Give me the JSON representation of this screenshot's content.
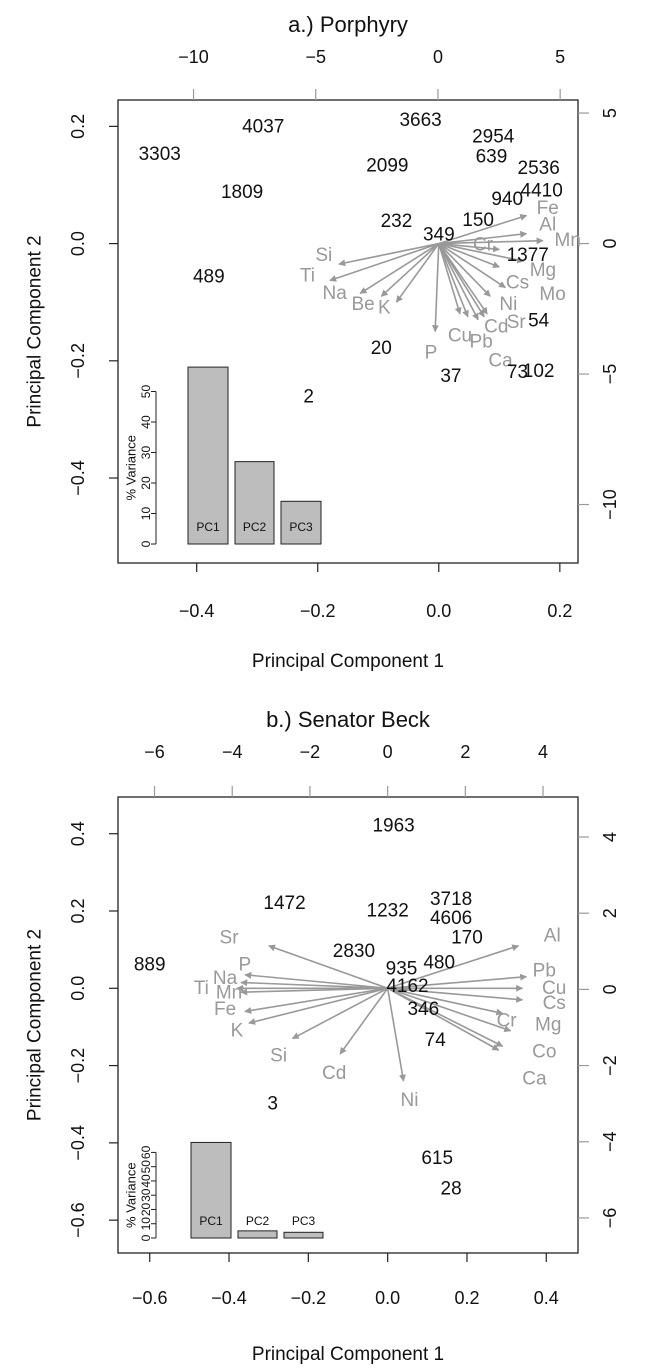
{
  "chart_data": [
    {
      "type": "scatter",
      "title": "a.) Porphyry",
      "xlabel": "Principal Component 1",
      "ylabel": "Principal Component 2",
      "xlim": [
        -0.53,
        0.23
      ],
      "ylim": [
        -0.545,
        0.245
      ],
      "x_ticks": [
        -0.4,
        -0.2,
        0.0,
        0.2
      ],
      "x_tick_labels": [
        "−0.4",
        "−0.2",
        "0.0",
        "0.2"
      ],
      "y_ticks": [
        -0.4,
        -0.2,
        0.0,
        0.2
      ],
      "y_tick_labels": [
        "−0.4",
        "−0.2",
        "0.0",
        "0.2"
      ],
      "top_ticks": [
        -10,
        -5,
        0,
        5
      ],
      "top_tick_labels": [
        "−10",
        "−5",
        "0",
        "5"
      ],
      "top_lim": [
        -13.09,
        5.73
      ],
      "right_ticks": [
        5,
        0,
        -5,
        -10
      ],
      "right_tick_labels": [
        "5",
        "0",
        "−5",
        "−10"
      ],
      "right_lim": [
        -12.24,
        5.5
      ],
      "samples": [
        {
          "label": "3303",
          "x": -0.461,
          "y": 0.152
        },
        {
          "label": "4037",
          "x": -0.29,
          "y": 0.199
        },
        {
          "label": "3663",
          "x": -0.03,
          "y": 0.21
        },
        {
          "label": "2954",
          "x": 0.09,
          "y": 0.182
        },
        {
          "label": "639",
          "x": 0.087,
          "y": 0.148
        },
        {
          "label": "2099",
          "x": -0.085,
          "y": 0.132
        },
        {
          "label": "2536",
          "x": 0.165,
          "y": 0.128
        },
        {
          "label": "1809",
          "x": -0.325,
          "y": 0.087
        },
        {
          "label": "940",
          "x": 0.113,
          "y": 0.075
        },
        {
          "label": "4410",
          "x": 0.17,
          "y": 0.09
        },
        {
          "label": "232",
          "x": -0.07,
          "y": 0.038
        },
        {
          "label": "150",
          "x": 0.065,
          "y": 0.039
        },
        {
          "label": "349",
          "x": 0.0,
          "y": 0.015
        },
        {
          "label": "1377",
          "x": 0.147,
          "y": -0.02
        },
        {
          "label": "489",
          "x": -0.38,
          "y": -0.057
        },
        {
          "label": "54",
          "x": 0.165,
          "y": -0.132
        },
        {
          "label": "20",
          "x": -0.095,
          "y": -0.179
        },
        {
          "label": "73",
          "x": 0.13,
          "y": -0.22
        },
        {
          "label": "37",
          "x": 0.02,
          "y": -0.227
        },
        {
          "label": "102",
          "x": 0.165,
          "y": -0.218
        },
        {
          "label": "2",
          "x": -0.215,
          "y": -0.262
        }
      ],
      "loadings": [
        {
          "label": "Si",
          "x": -0.165,
          "y": -0.035
        },
        {
          "label": "Ti",
          "x": -0.18,
          "y": -0.063
        },
        {
          "label": "Na",
          "x": -0.13,
          "y": -0.085
        },
        {
          "label": "Be",
          "x": -0.095,
          "y": -0.09
        },
        {
          "label": "K",
          "x": -0.07,
          "y": -0.1
        },
        {
          "label": "P",
          "x": -0.006,
          "y": -0.15
        },
        {
          "label": "Cu",
          "x": 0.035,
          "y": -0.12
        },
        {
          "label": "Pb",
          "x": 0.048,
          "y": -0.125
        },
        {
          "label": "Cd",
          "x": 0.075,
          "y": -0.125
        },
        {
          "label": "Sr",
          "x": 0.08,
          "y": -0.12
        },
        {
          "label": "Ni",
          "x": 0.085,
          "y": -0.09
        },
        {
          "label": "Ca",
          "x": 0.065,
          "y": -0.13
        },
        {
          "label": "Cs",
          "x": 0.1,
          "y": -0.04
        },
        {
          "label": "Mg",
          "x": 0.14,
          "y": -0.03
        },
        {
          "label": "Mo",
          "x": 0.11,
          "y": -0.075
        },
        {
          "label": "Cr",
          "x": 0.1,
          "y": -0.01
        },
        {
          "label": "Fe",
          "x": 0.145,
          "y": 0.048
        },
        {
          "label": "Al",
          "x": 0.145,
          "y": 0.017
        },
        {
          "label": "Mn",
          "x": 0.172,
          "y": 0.005
        }
      ],
      "loading_labels": [
        {
          "label": "Si",
          "x": -0.19,
          "y": -0.02
        },
        {
          "label": "Ti",
          "x": -0.217,
          "y": -0.055
        },
        {
          "label": "Na",
          "x": -0.172,
          "y": -0.085
        },
        {
          "label": "Be",
          "x": -0.125,
          "y": -0.104
        },
        {
          "label": "K",
          "x": -0.09,
          "y": -0.11
        },
        {
          "label": "P",
          "x": -0.013,
          "y": -0.187
        },
        {
          "label": "Cu",
          "x": 0.035,
          "y": -0.158
        },
        {
          "label": "Pb",
          "x": 0.07,
          "y": -0.168
        },
        {
          "label": "Cd",
          "x": 0.095,
          "y": -0.142
        },
        {
          "label": "Sr",
          "x": 0.128,
          "y": -0.135
        },
        {
          "label": "Ni",
          "x": 0.115,
          "y": -0.104
        },
        {
          "label": "Ca",
          "x": 0.102,
          "y": -0.2
        },
        {
          "label": "Cs",
          "x": 0.13,
          "y": -0.067
        },
        {
          "label": "Mg",
          "x": 0.172,
          "y": -0.046
        },
        {
          "label": "Mo",
          "x": 0.188,
          "y": -0.087
        },
        {
          "label": "Cr",
          "x": 0.073,
          "y": -0.002
        },
        {
          "label": "Fe",
          "x": 0.18,
          "y": 0.06
        },
        {
          "label": "Al",
          "x": 0.18,
          "y": 0.032
        },
        {
          "label": "Mn",
          "x": 0.213,
          "y": 0.005
        }
      ],
      "inset": {
        "ylabel": "% Variance",
        "ticks": [
          0,
          10,
          20,
          30,
          40,
          50
        ],
        "ymax": 60,
        "bars": [
          {
            "label": "PC1",
            "value": 58
          },
          {
            "label": "PC2",
            "value": 27
          },
          {
            "label": "PC3",
            "value": 14
          }
        ]
      }
    },
    {
      "type": "scatter",
      "title": "b.) Senator Beck",
      "xlabel": "Principal Component 1",
      "ylabel": "Principal Component 2",
      "xlim": [
        -0.68,
        0.48
      ],
      "ylim": [
        -0.685,
        0.495
      ],
      "x_ticks": [
        -0.6,
        -0.4,
        -0.2,
        0.0,
        0.2,
        0.4
      ],
      "x_tick_labels": [
        "−0.6",
        "−0.4",
        "−0.2",
        "0.0",
        "0.2",
        "0.4"
      ],
      "y_ticks": [
        -0.6,
        -0.4,
        -0.2,
        0.0,
        0.2,
        0.4
      ],
      "y_tick_labels": [
        "−0.6",
        "−0.4",
        "−0.2",
        "0.0",
        "0.2",
        "0.4"
      ],
      "top_ticks": [
        -6,
        -4,
        -2,
        0,
        2,
        4
      ],
      "top_tick_labels": [
        "−6",
        "−4",
        "−2",
        "0",
        "2",
        "4"
      ],
      "top_lim": [
        -6.94,
        4.9
      ],
      "right_ticks": [
        4,
        2,
        0,
        -2,
        -4,
        -6
      ],
      "right_tick_labels": [
        "4",
        "2",
        "0",
        "−2",
        "−4",
        "−6"
      ],
      "right_lim": [
        -6.92,
        5.05
      ],
      "samples": [
        {
          "label": "1963",
          "x": 0.015,
          "y": 0.42
        },
        {
          "label": "1472",
          "x": -0.26,
          "y": 0.22
        },
        {
          "label": "3718",
          "x": 0.16,
          "y": 0.23
        },
        {
          "label": "1232",
          "x": 0.0,
          "y": 0.2
        },
        {
          "label": "4606",
          "x": 0.16,
          "y": 0.18
        },
        {
          "label": "170",
          "x": 0.2,
          "y": 0.13
        },
        {
          "label": "2830",
          "x": -0.085,
          "y": 0.095
        },
        {
          "label": "480",
          "x": 0.13,
          "y": 0.065
        },
        {
          "label": "889",
          "x": -0.6,
          "y": 0.06
        },
        {
          "label": "935",
          "x": 0.035,
          "y": 0.05
        },
        {
          "label": "4162",
          "x": 0.05,
          "y": 0.005
        },
        {
          "label": "346",
          "x": 0.09,
          "y": -0.055
        },
        {
          "label": "74",
          "x": 0.12,
          "y": -0.135
        },
        {
          "label": "3",
          "x": -0.29,
          "y": -0.3
        },
        {
          "label": "615",
          "x": 0.125,
          "y": -0.44
        },
        {
          "label": "28",
          "x": 0.16,
          "y": -0.52
        }
      ],
      "loadings": [
        {
          "label": "Sr",
          "x": -0.3,
          "y": 0.11
        },
        {
          "label": "P",
          "x": -0.36,
          "y": 0.035
        },
        {
          "label": "Na",
          "x": -0.37,
          "y": 0.015
        },
        {
          "label": "Ti",
          "x": -0.38,
          "y": 0.0
        },
        {
          "label": "Mn",
          "x": -0.37,
          "y": -0.01
        },
        {
          "label": "Fe",
          "x": -0.36,
          "y": -0.06
        },
        {
          "label": "K",
          "x": -0.35,
          "y": -0.09
        },
        {
          "label": "Si",
          "x": -0.24,
          "y": -0.13
        },
        {
          "label": "Cd",
          "x": -0.12,
          "y": -0.17
        },
        {
          "label": "Ni",
          "x": 0.04,
          "y": -0.24
        },
        {
          "label": "Al",
          "x": 0.33,
          "y": 0.11
        },
        {
          "label": "Pb",
          "x": 0.35,
          "y": 0.03
        },
        {
          "label": "Cu",
          "x": 0.34,
          "y": 0.0
        },
        {
          "label": "Cs",
          "x": 0.34,
          "y": -0.03
        },
        {
          "label": "Cr",
          "x": 0.29,
          "y": -0.065
        },
        {
          "label": "Mg",
          "x": 0.31,
          "y": -0.11
        },
        {
          "label": "Co",
          "x": 0.29,
          "y": -0.15
        },
        {
          "label": "Ca",
          "x": 0.28,
          "y": -0.16
        }
      ],
      "loading_labels": [
        {
          "label": "Sr",
          "x": -0.4,
          "y": 0.13
        },
        {
          "label": "P",
          "x": -0.36,
          "y": 0.06
        },
        {
          "label": "Na",
          "x": -0.41,
          "y": 0.025
        },
        {
          "label": "Ti",
          "x": -0.47,
          "y": 0.0
        },
        {
          "label": "Mn",
          "x": -0.4,
          "y": -0.012
        },
        {
          "label": "Fe",
          "x": -0.41,
          "y": -0.055
        },
        {
          "label": "K",
          "x": -0.38,
          "y": -0.11
        },
        {
          "label": "Si",
          "x": -0.275,
          "y": -0.175
        },
        {
          "label": "Cd",
          "x": -0.135,
          "y": -0.22
        },
        {
          "label": "Ni",
          "x": 0.055,
          "y": -0.29
        },
        {
          "label": "Al",
          "x": 0.415,
          "y": 0.135
        },
        {
          "label": "Pb",
          "x": 0.395,
          "y": 0.045
        },
        {
          "label": "Cu",
          "x": 0.42,
          "y": 0.0
        },
        {
          "label": "Cs",
          "x": 0.42,
          "y": -0.04
        },
        {
          "label": "Cr",
          "x": 0.3,
          "y": -0.085
        },
        {
          "label": "Mg",
          "x": 0.405,
          "y": -0.095
        },
        {
          "label": "Co",
          "x": 0.395,
          "y": -0.165
        },
        {
          "label": "Ca",
          "x": 0.37,
          "y": -0.235
        }
      ],
      "inset": {
        "ylabel": "% Variance",
        "ticks": [
          0,
          10,
          20,
          30,
          40,
          50,
          60
        ],
        "ymax": 68,
        "bars": [
          {
            "label": "PC1",
            "value": 67
          },
          {
            "label": "PC2",
            "value": 5
          },
          {
            "label": "PC3",
            "value": 4
          }
        ]
      }
    }
  ]
}
